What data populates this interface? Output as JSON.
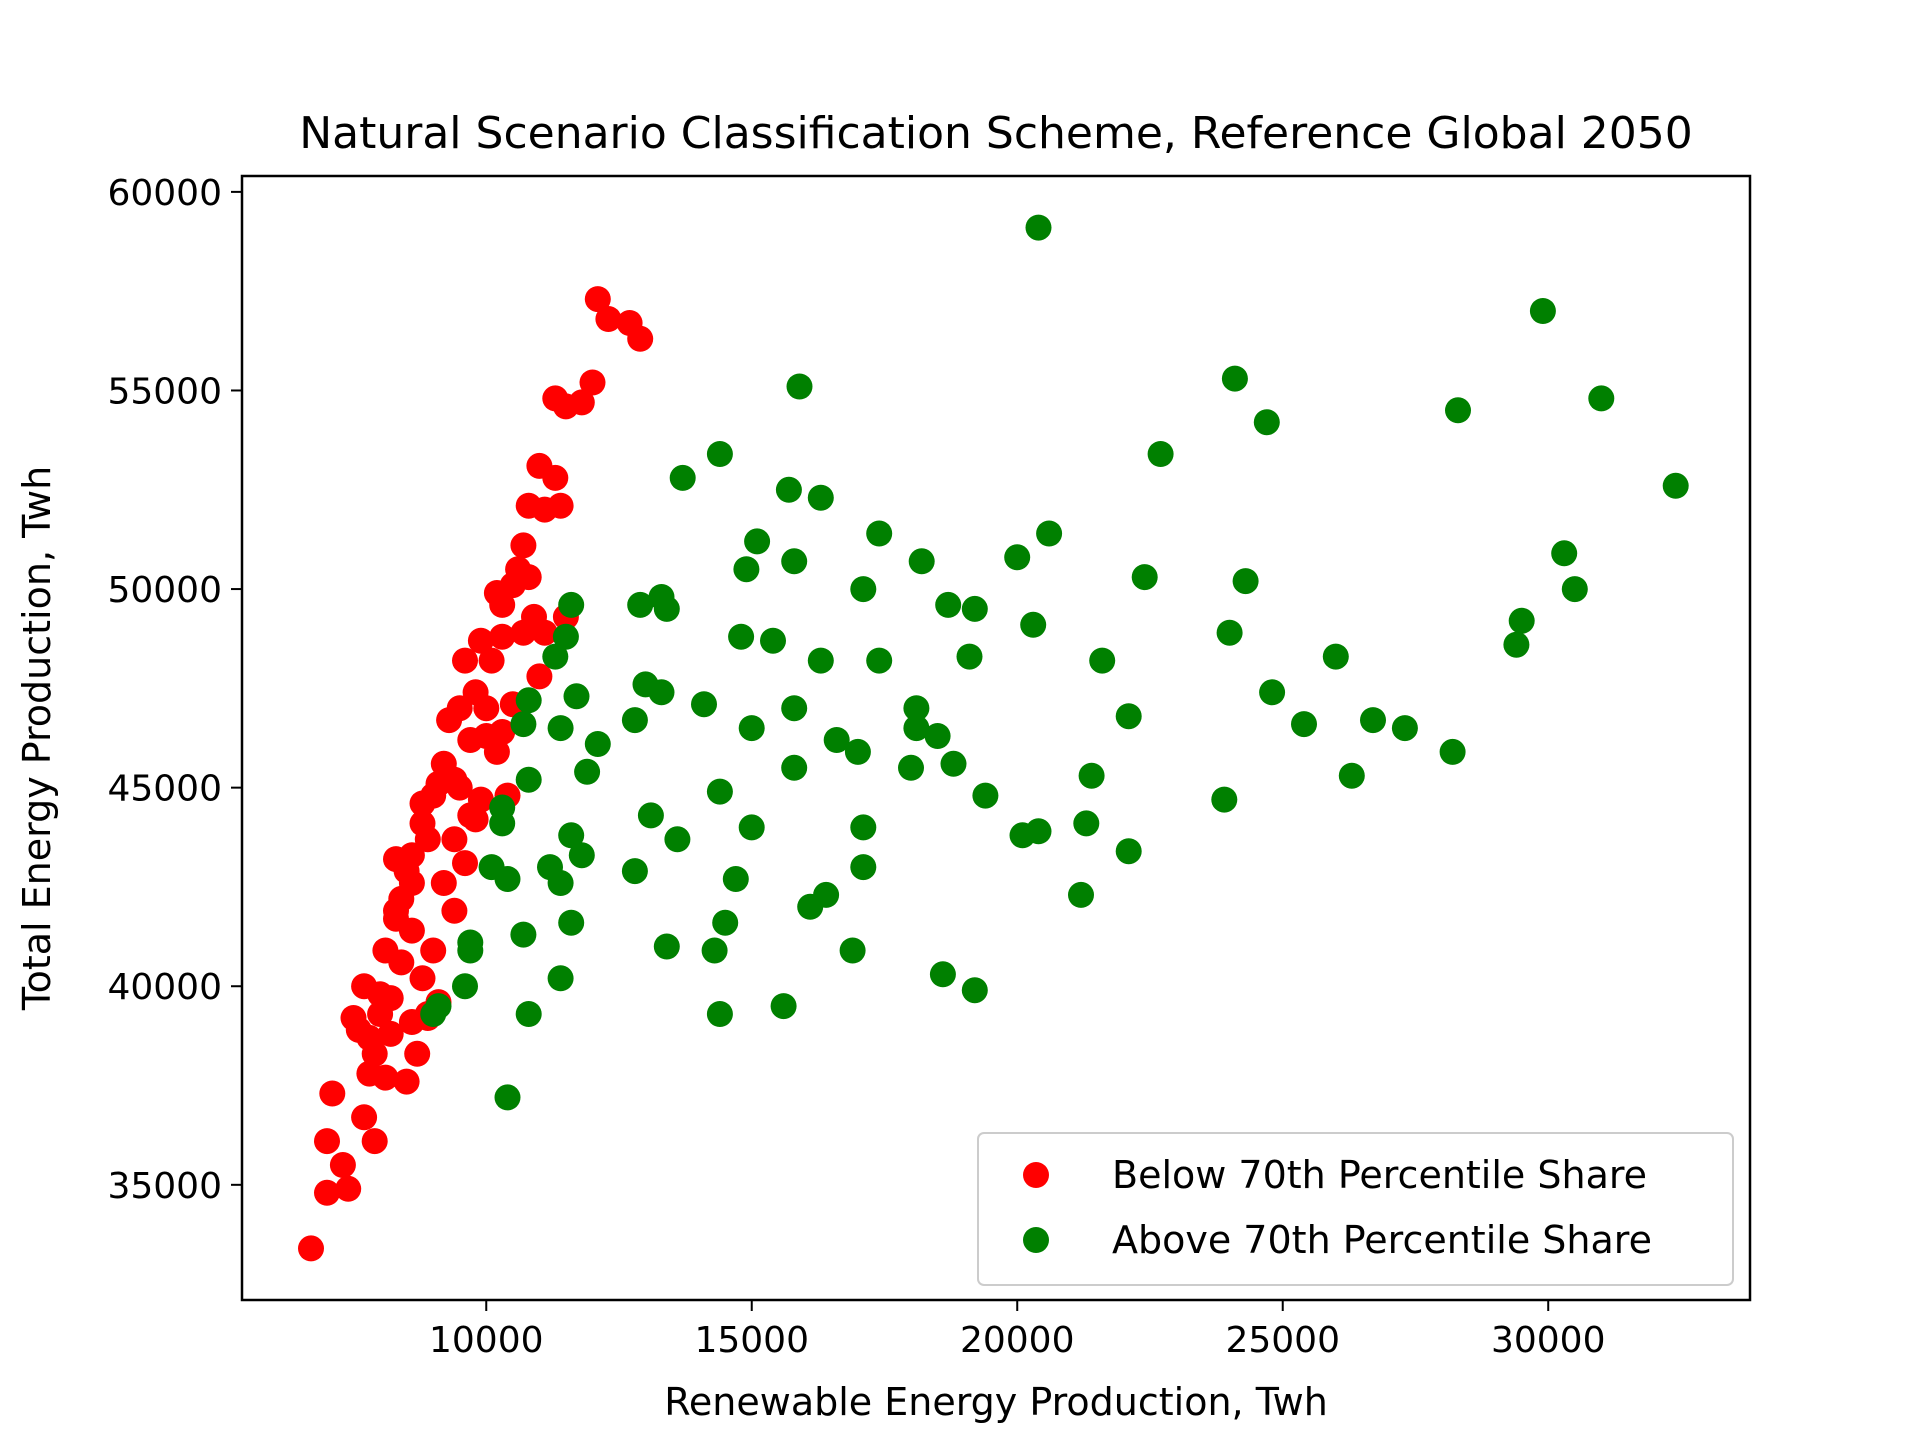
{
  "chart_data": {
    "type": "scatter",
    "title": "Natural Scenario Classification Scheme, Reference Global 2050",
    "xlabel": "Renewable Energy Production, Twh",
    "ylabel": "Total Energy Production, Twh",
    "xlim": [
      5400,
      33800
    ],
    "ylim": [
      32100,
      60400
    ],
    "xticks": [
      10000,
      15000,
      20000,
      25000,
      30000
    ],
    "yticks": [
      35000,
      40000,
      45000,
      50000,
      55000,
      60000
    ],
    "grid": false,
    "legend_position": "bottom-right",
    "series": [
      {
        "name": "Below 70th Percentile Share",
        "color": "#ff0000",
        "points": [
          [
            6700,
            33400
          ],
          [
            7000,
            34800
          ],
          [
            7100,
            37300
          ],
          [
            7300,
            35500
          ],
          [
            7400,
            34900
          ],
          [
            7000,
            36100
          ],
          [
            7600,
            38900
          ],
          [
            7700,
            36700
          ],
          [
            7900,
            36100
          ],
          [
            7800,
            37800
          ],
          [
            7900,
            38300
          ],
          [
            8000,
            39800
          ],
          [
            8100,
            37700
          ],
          [
            8200,
            38800
          ],
          [
            8000,
            39300
          ],
          [
            8400,
            40600
          ],
          [
            8600,
            41400
          ],
          [
            8500,
            37600
          ],
          [
            8700,
            38300
          ],
          [
            8900,
            39300
          ],
          [
            7500,
            39200
          ],
          [
            7700,
            40000
          ],
          [
            8300,
            41900
          ],
          [
            8400,
            42200
          ],
          [
            8600,
            43300
          ],
          [
            8800,
            44100
          ],
          [
            8900,
            43700
          ],
          [
            9000,
            44800
          ],
          [
            9100,
            45100
          ],
          [
            8300,
            43200
          ],
          [
            8600,
            42600
          ],
          [
            9200,
            42600
          ],
          [
            9400,
            43700
          ],
          [
            9500,
            45000
          ],
          [
            9700,
            44300
          ],
          [
            9900,
            44700
          ],
          [
            9300,
            46700
          ],
          [
            9500,
            47000
          ],
          [
            9800,
            47400
          ],
          [
            10000,
            47000
          ],
          [
            9600,
            48200
          ],
          [
            9900,
            48700
          ],
          [
            10100,
            48200
          ],
          [
            10300,
            49600
          ],
          [
            10500,
            50100
          ],
          [
            10700,
            51100
          ],
          [
            10800,
            52100
          ],
          [
            11000,
            53100
          ],
          [
            11300,
            52800
          ],
          [
            11400,
            52100
          ],
          [
            11300,
            54800
          ],
          [
            11500,
            54600
          ],
          [
            11800,
            54700
          ],
          [
            12000,
            55200
          ],
          [
            12100,
            57300
          ],
          [
            12300,
            56800
          ],
          [
            12700,
            56700
          ],
          [
            12900,
            56300
          ],
          [
            11500,
            49300
          ],
          [
            11100,
            48900
          ],
          [
            10900,
            49300
          ],
          [
            10700,
            48900
          ],
          [
            11000,
            47800
          ],
          [
            10500,
            47100
          ],
          [
            10300,
            46400
          ],
          [
            10200,
            45900
          ],
          [
            10400,
            44800
          ],
          [
            9800,
            44200
          ],
          [
            9600,
            43100
          ],
          [
            9400,
            41900
          ],
          [
            9000,
            40900
          ],
          [
            8800,
            40200
          ],
          [
            9100,
            39600
          ],
          [
            8900,
            39200
          ],
          [
            8600,
            39100
          ],
          [
            10800,
            50300
          ],
          [
            10200,
            49900
          ],
          [
            10600,
            50500
          ],
          [
            11100,
            52000
          ],
          [
            10000,
            46300
          ],
          [
            9200,
            45600
          ],
          [
            8800,
            44600
          ],
          [
            8500,
            42900
          ],
          [
            8300,
            41700
          ],
          [
            8100,
            40900
          ],
          [
            7800,
            38700
          ],
          [
            8200,
            39700
          ],
          [
            9700,
            46200
          ],
          [
            10300,
            48800
          ],
          [
            9400,
            45200
          ]
        ]
      },
      {
        "name": "Above 70th Percentile Share",
        "color": "#008000",
        "points": [
          [
            20400,
            59100
          ],
          [
            15900,
            55100
          ],
          [
            29900,
            57000
          ],
          [
            24100,
            55300
          ],
          [
            31000,
            54800
          ],
          [
            28300,
            54500
          ],
          [
            24700,
            54200
          ],
          [
            14400,
            53400
          ],
          [
            13700,
            52800
          ],
          [
            15700,
            52500
          ],
          [
            16300,
            52300
          ],
          [
            22700,
            53400
          ],
          [
            32400,
            52600
          ],
          [
            17400,
            51400
          ],
          [
            20600,
            51400
          ],
          [
            15100,
            51200
          ],
          [
            14900,
            50500
          ],
          [
            15800,
            50700
          ],
          [
            18200,
            50700
          ],
          [
            20000,
            50800
          ],
          [
            22400,
            50300
          ],
          [
            24300,
            50200
          ],
          [
            30300,
            50900
          ],
          [
            30500,
            50000
          ],
          [
            17100,
            50000
          ],
          [
            13300,
            49800
          ],
          [
            13400,
            49500
          ],
          [
            11600,
            49600
          ],
          [
            12900,
            49600
          ],
          [
            18700,
            49600
          ],
          [
            19200,
            49500
          ],
          [
            20300,
            49100
          ],
          [
            29500,
            49200
          ],
          [
            29400,
            48600
          ],
          [
            24000,
            48900
          ],
          [
            14800,
            48800
          ],
          [
            15400,
            48700
          ],
          [
            11500,
            48800
          ],
          [
            11300,
            48300
          ],
          [
            16300,
            48200
          ],
          [
            17400,
            48200
          ],
          [
            19100,
            48300
          ],
          [
            21600,
            48200
          ],
          [
            26000,
            48300
          ],
          [
            13000,
            47600
          ],
          [
            13300,
            47400
          ],
          [
            11700,
            47300
          ],
          [
            10800,
            47200
          ],
          [
            14100,
            47100
          ],
          [
            15800,
            47000
          ],
          [
            18100,
            47000
          ],
          [
            22100,
            46800
          ],
          [
            24800,
            47400
          ],
          [
            26700,
            46700
          ],
          [
            27300,
            46500
          ],
          [
            25400,
            46600
          ],
          [
            12800,
            46700
          ],
          [
            10700,
            46600
          ],
          [
            11400,
            46500
          ],
          [
            15000,
            46500
          ],
          [
            18100,
            46500
          ],
          [
            18500,
            46300
          ],
          [
            16600,
            46200
          ],
          [
            12100,
            46100
          ],
          [
            17000,
            45900
          ],
          [
            28200,
            45900
          ],
          [
            18000,
            45500
          ],
          [
            18800,
            45600
          ],
          [
            15800,
            45500
          ],
          [
            11900,
            45400
          ],
          [
            10800,
            45200
          ],
          [
            21400,
            45300
          ],
          [
            26300,
            45300
          ],
          [
            14400,
            44900
          ],
          [
            19400,
            44800
          ],
          [
            23900,
            44700
          ],
          [
            10300,
            44500
          ],
          [
            10300,
            44100
          ],
          [
            13100,
            44300
          ],
          [
            17100,
            44000
          ],
          [
            15000,
            44000
          ],
          [
            20100,
            43800
          ],
          [
            20400,
            43900
          ],
          [
            21300,
            44100
          ],
          [
            11600,
            43800
          ],
          [
            13600,
            43700
          ],
          [
            11800,
            43300
          ],
          [
            22100,
            43400
          ],
          [
            10100,
            43000
          ],
          [
            11200,
            43000
          ],
          [
            12800,
            42900
          ],
          [
            17100,
            43000
          ],
          [
            10400,
            42700
          ],
          [
            11400,
            42600
          ],
          [
            14700,
            42700
          ],
          [
            16400,
            42300
          ],
          [
            21200,
            42300
          ],
          [
            16100,
            42000
          ],
          [
            11600,
            41600
          ],
          [
            14500,
            41600
          ],
          [
            9700,
            41100
          ],
          [
            9700,
            40900
          ],
          [
            10700,
            41300
          ],
          [
            13400,
            41000
          ],
          [
            14300,
            40900
          ],
          [
            16900,
            40900
          ],
          [
            11400,
            40200
          ],
          [
            9600,
            40000
          ],
          [
            18600,
            40300
          ],
          [
            19200,
            39900
          ],
          [
            9100,
            39500
          ],
          [
            9000,
            39300
          ],
          [
            10800,
            39300
          ],
          [
            14400,
            39300
          ],
          [
            15600,
            39500
          ],
          [
            10400,
            37200
          ]
        ]
      }
    ]
  }
}
